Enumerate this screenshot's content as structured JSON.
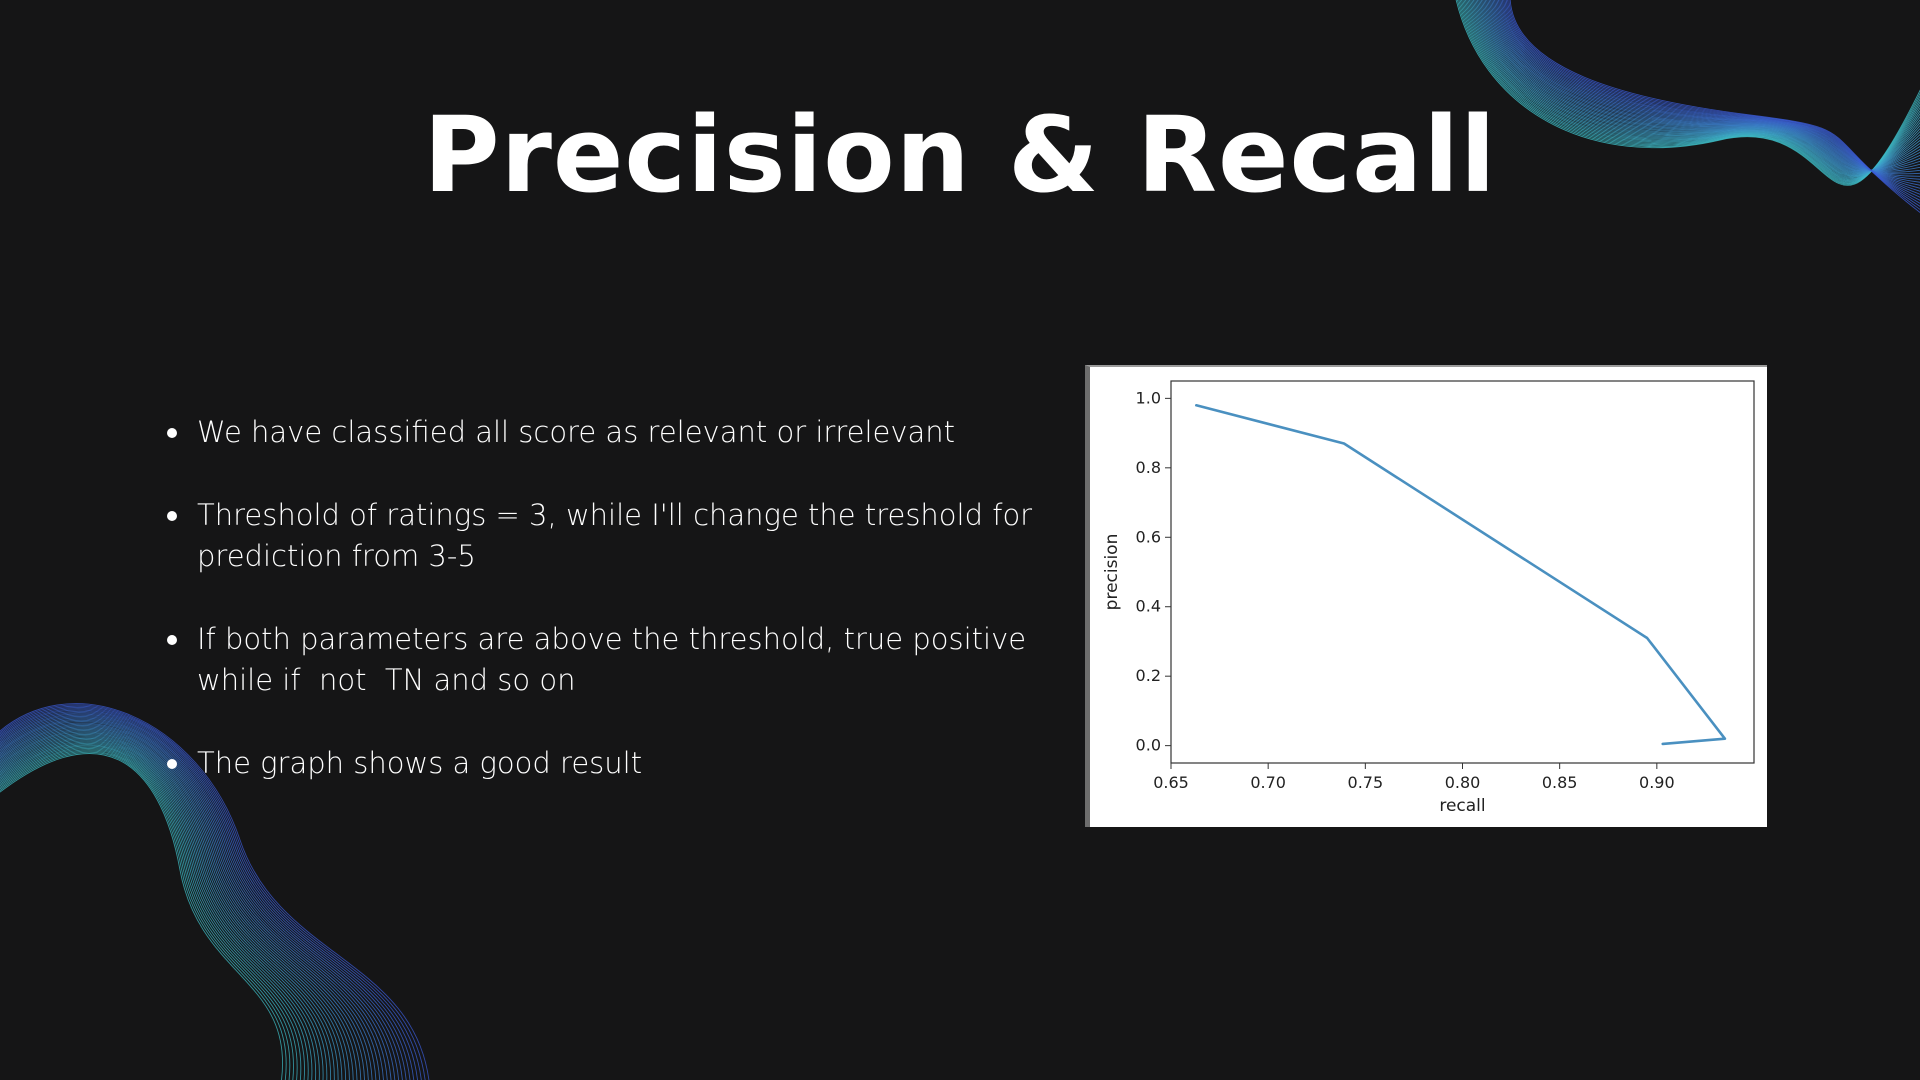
{
  "slide": {
    "title": "Precision & Recall",
    "bullets": [
      "We have classified all score as relevant or irrelevant",
      "Threshold of ratings = 3, while I'll change the treshold for prediction from 3-5",
      "If both parameters are above the threshold, true positive while if  not  TN and so on",
      "The graph shows a good result"
    ],
    "colors": {
      "background": "#151516",
      "text": "#ffffff",
      "deco_teal": "#3fc1c9",
      "deco_blue": "#3b5bd6",
      "line": "#4a90c0"
    }
  },
  "chart_data": {
    "type": "line",
    "title": "",
    "xlabel": "recall",
    "ylabel": "precision",
    "xlim": [
      0.65,
      0.95
    ],
    "ylim": [
      -0.05,
      1.05
    ],
    "xticks": [
      0.65,
      0.7,
      0.75,
      0.8,
      0.85,
      0.9
    ],
    "xtick_labels": [
      "0.65",
      "0.70",
      "0.75",
      "0.80",
      "0.85",
      "0.90"
    ],
    "yticks": [
      0.0,
      0.2,
      0.4,
      0.6,
      0.8,
      1.0
    ],
    "ytick_labels": [
      "0.0",
      "0.2",
      "0.4",
      "0.6",
      "0.8",
      "1.0"
    ],
    "grid": false,
    "series": [
      {
        "x": [
          0.663,
          0.739,
          0.895,
          0.935,
          0.903
        ],
        "y": [
          0.98,
          0.87,
          0.31,
          0.02,
          0.005
        ]
      }
    ]
  }
}
